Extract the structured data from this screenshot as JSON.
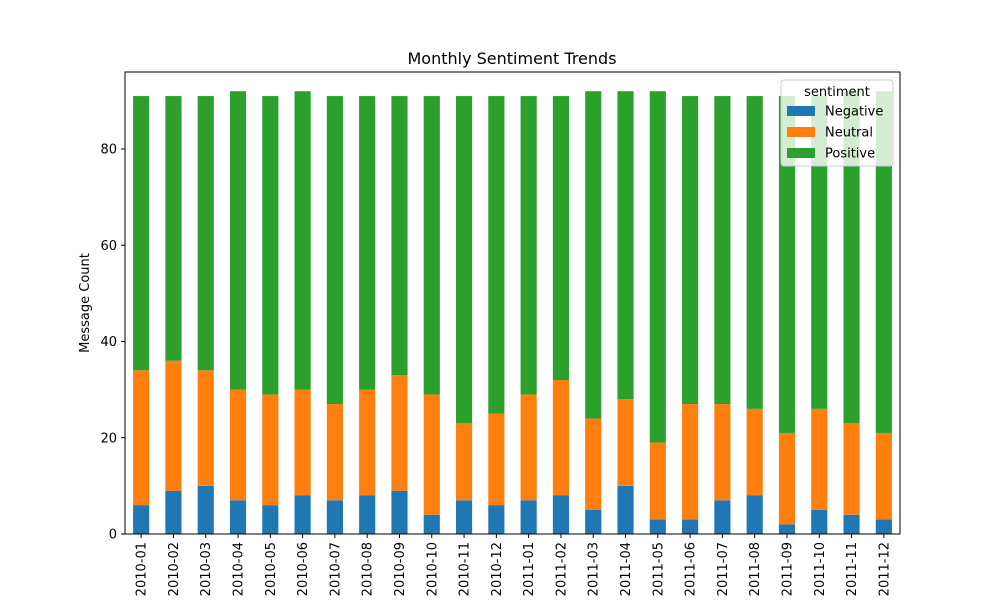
{
  "chart_data": {
    "type": "bar",
    "stacked": true,
    "title": "Monthly Sentiment Trends",
    "xlabel": "",
    "ylabel": "Message Count",
    "ylim": [
      0,
      96
    ],
    "yticks": [
      0,
      20,
      40,
      60,
      80
    ],
    "grid": false,
    "legend": {
      "title": "sentiment",
      "placement": "top-right"
    },
    "categories": [
      "2010-01",
      "2010-02",
      "2010-03",
      "2010-04",
      "2010-05",
      "2010-06",
      "2010-07",
      "2010-08",
      "2010-09",
      "2010-10",
      "2010-11",
      "2010-12",
      "2011-01",
      "2011-02",
      "2011-03",
      "2011-04",
      "2011-05",
      "2011-06",
      "2011-07",
      "2011-08",
      "2011-09",
      "2011-10",
      "2011-11",
      "2011-12"
    ],
    "series": [
      {
        "name": "Negative",
        "color": "#1f77b4",
        "values": [
          6,
          9,
          10,
          7,
          6,
          8,
          7,
          8,
          9,
          4,
          7,
          6,
          7,
          8,
          5,
          10,
          3,
          3,
          7,
          8,
          2,
          5,
          4,
          3
        ]
      },
      {
        "name": "Neutral",
        "color": "#ff7f0e",
        "values": [
          28,
          27,
          24,
          23,
          23,
          22,
          20,
          22,
          24,
          25,
          16,
          19,
          22,
          24,
          19,
          18,
          16,
          24,
          20,
          18,
          19,
          21,
          19,
          18
        ]
      },
      {
        "name": "Positive",
        "color": "#2ca02c",
        "values": [
          57,
          55,
          57,
          62,
          62,
          62,
          64,
          61,
          58,
          62,
          68,
          66,
          62,
          59,
          68,
          64,
          73,
          64,
          64,
          65,
          70,
          65,
          69,
          71
        ]
      }
    ]
  }
}
